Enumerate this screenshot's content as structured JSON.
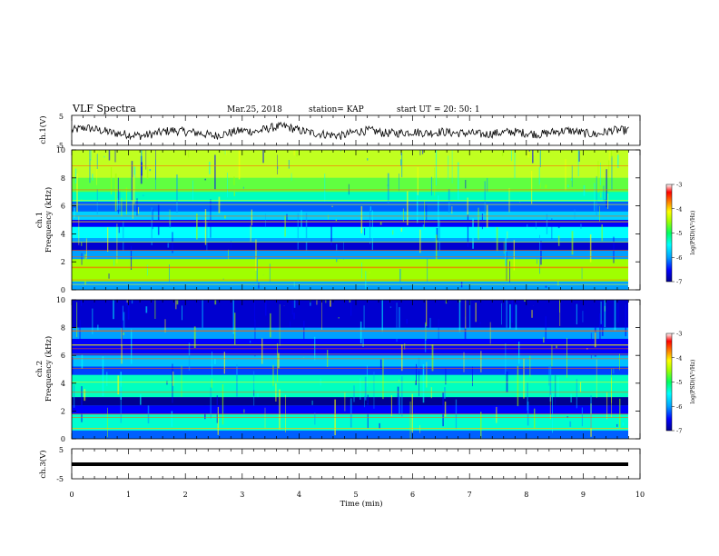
{
  "header": {
    "title": "VLF Spectra",
    "date": "Mar.25, 2018",
    "station": "station= KAP",
    "start": "start  UT =   20: 50: 1"
  },
  "chart_data": [
    {
      "type": "line",
      "name": "ch1-waveform",
      "ylabel": "ch.1(V)",
      "ylim": [
        -5,
        5
      ],
      "yticks": [
        "5",
        "-5"
      ],
      "xlim": [
        0,
        10
      ],
      "x": [
        0,
        0.25,
        0.5,
        0.75,
        1,
        1.25,
        1.5,
        1.75,
        2,
        2.25,
        2.5,
        2.75,
        3,
        3.25,
        3.5,
        3.75,
        4,
        4.25,
        4.5,
        4.75,
        5,
        5.25,
        5.5,
        5.75,
        6,
        6.25,
        6.5,
        6.75,
        7,
        7.25,
        7.5,
        7.75,
        8,
        8.25,
        8.5,
        8.75,
        9,
        9.25,
        9.5,
        9.75
      ],
      "y": [
        0,
        1,
        0,
        -1,
        -1.5,
        -2,
        -1,
        0,
        -0.5,
        -1,
        -2,
        -1,
        0,
        -0.5,
        1,
        1.5,
        0,
        -1,
        -1.5,
        -2,
        -0.5,
        0,
        -1,
        -1,
        -0.5,
        -1,
        -0.5,
        -1,
        -1,
        -1.5,
        -1,
        -0.5,
        -1,
        -1.5,
        -0.5,
        0,
        -1,
        -1.5,
        0,
        0
      ]
    },
    {
      "type": "heatmap",
      "name": "ch1-spectrogram",
      "ylabel": "ch.1\nFrequency (kHz)",
      "ylim": [
        0,
        10
      ],
      "yticks": [
        "0",
        "2",
        "4",
        "6",
        "8",
        "10"
      ],
      "xlim": [
        0,
        10
      ],
      "colorbar": {
        "label": "log(PSD)(V^2/Hz)",
        "range": [
          -7,
          -3
        ],
        "ticks": [
          "-3",
          "-4",
          "-5",
          "-6",
          "-7"
        ]
      }
    },
    {
      "type": "heatmap",
      "name": "ch2-spectrogram",
      "ylabel": "ch.2\nFrequency (kHz)",
      "ylim": [
        0,
        10
      ],
      "yticks": [
        "0",
        "2",
        "4",
        "6",
        "8",
        "10"
      ],
      "xlim": [
        0,
        10
      ],
      "colorbar": {
        "label": "log(PSD)(V^2/Hz)",
        "range": [
          -7,
          -3
        ],
        "ticks": [
          "-3",
          "-4",
          "-5",
          "-6",
          "-7"
        ]
      }
    },
    {
      "type": "line",
      "name": "ch3-waveform",
      "ylabel": "ch.3(V)",
      "ylim": [
        -5,
        5
      ],
      "yticks": [
        "5",
        "-5"
      ],
      "xlim": [
        0,
        10
      ],
      "x": [
        0,
        9.8
      ],
      "y": [
        0,
        0
      ]
    }
  ],
  "xaxis": {
    "label": "Time  (min)",
    "ticks": [
      "0",
      "1",
      "2",
      "3",
      "4",
      "5",
      "6",
      "7",
      "8",
      "9",
      "10"
    ]
  },
  "colors": {
    "colormap": [
      "#000090",
      "#0000ff",
      "#00a0ff",
      "#00ffff",
      "#00ff60",
      "#a0ff00",
      "#ffff00",
      "#ff8000",
      "#ff0000",
      "#ffffff"
    ]
  }
}
